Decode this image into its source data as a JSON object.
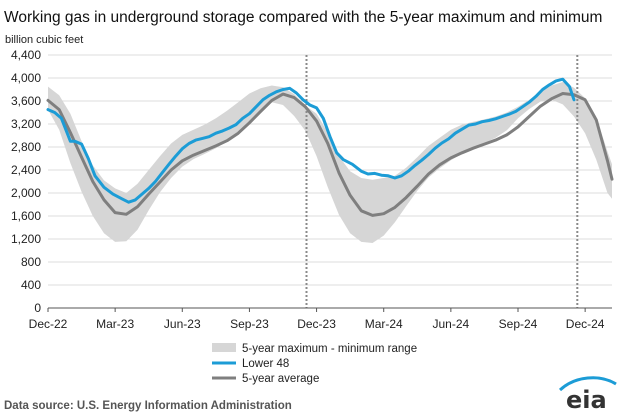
{
  "chart_data": {
    "type": "line",
    "title": "Working gas in underground storage compared with the 5-year maximum and minimum",
    "ylabel": "billion cubic feet",
    "xlabel": "",
    "ylim": [
      0,
      4400
    ],
    "yticks": [
      0,
      400,
      800,
      1200,
      1600,
      2000,
      2400,
      2800,
      3200,
      3600,
      4000,
      4400
    ],
    "ytick_labels": [
      "0",
      "400",
      "800",
      "1,200",
      "1,600",
      "2,000",
      "2,400",
      "2,800",
      "3,200",
      "3,600",
      "4,000",
      "4,400"
    ],
    "x_unit": "month index (0 = Dec-22)",
    "xlim": [
      0,
      25.2
    ],
    "xticks": [
      {
        "x": 0,
        "label": "Dec-22"
      },
      {
        "x": 3,
        "label": "Mar-23"
      },
      {
        "x": 6,
        "label": "Jun-23"
      },
      {
        "x": 9,
        "label": "Sep-23"
      },
      {
        "x": 12,
        "label": "Dec-23"
      },
      {
        "x": 15,
        "label": "Mar-24"
      },
      {
        "x": 18,
        "label": "Jun-24"
      },
      {
        "x": 21,
        "label": "Sep-24"
      },
      {
        "x": 24,
        "label": "Dec-24"
      }
    ],
    "grid": true,
    "vlines": [
      11.55,
      23.65
    ],
    "legend_position": "bottom-center",
    "range_band": {
      "name": "5-year maximum - minimum range",
      "color": "#d6d6d6",
      "x": [
        0,
        0.5,
        1,
        1.5,
        2,
        2.5,
        3,
        3.5,
        4,
        4.5,
        5,
        5.5,
        6,
        6.5,
        7,
        7.5,
        8,
        8.5,
        9,
        9.5,
        10,
        10.5,
        11,
        11.5,
        12,
        12.5,
        13,
        13.5,
        14,
        14.5,
        15,
        15.5,
        16,
        16.5,
        17,
        17.5,
        18,
        18.5,
        19,
        19.5,
        20,
        20.5,
        21,
        21.5,
        22,
        22.5,
        23,
        23.5,
        24,
        24.5,
        25,
        25.2
      ],
      "upper": [
        3850,
        3700,
        3380,
        2900,
        2480,
        2220,
        2080,
        2000,
        2160,
        2400,
        2640,
        2860,
        3010,
        3100,
        3190,
        3300,
        3430,
        3580,
        3730,
        3820,
        3870,
        3840,
        3720,
        3520,
        3380,
        3050,
        2640,
        2380,
        2260,
        2230,
        2260,
        2300,
        2440,
        2620,
        2820,
        2960,
        3100,
        3190,
        3240,
        3280,
        3330,
        3400,
        3500,
        3620,
        3760,
        3870,
        3930,
        3830,
        3650,
        3320,
        2720,
        2500
      ],
      "lower": [
        3450,
        3100,
        2520,
        2020,
        1600,
        1300,
        1150,
        1160,
        1360,
        1700,
        2010,
        2260,
        2460,
        2590,
        2680,
        2780,
        2900,
        3050,
        3250,
        3450,
        3580,
        3530,
        3340,
        3080,
        2640,
        2100,
        1620,
        1300,
        1150,
        1130,
        1260,
        1490,
        1770,
        2040,
        2270,
        2430,
        2570,
        2680,
        2780,
        2870,
        2960,
        3090,
        3300,
        3460,
        3590,
        3620,
        3540,
        3330,
        3040,
        2580,
        2000,
        1900
      ]
    },
    "series": [
      {
        "name": "Lower 48",
        "color": "#1c9cd6",
        "x": [
          0,
          0.3,
          0.6,
          1.0,
          1.2,
          1.5,
          1.8,
          2.1,
          2.5,
          2.9,
          3.3,
          3.6,
          3.9,
          4.2,
          4.5,
          4.8,
          5.1,
          5.4,
          5.7,
          6.0,
          6.3,
          6.6,
          6.9,
          7.2,
          7.5,
          7.8,
          8.1,
          8.4,
          8.7,
          9.0,
          9.3,
          9.6,
          9.9,
          10.2,
          10.5,
          10.8,
          11.1,
          11.4,
          11.7,
          12.0,
          12.3,
          12.6,
          12.9,
          13.2,
          13.6,
          14.0,
          14.3,
          14.6,
          14.9,
          15.2,
          15.5,
          15.8,
          16.1,
          16.4,
          16.7,
          17.0,
          17.3,
          17.6,
          17.9,
          18.2,
          18.5,
          18.8,
          19.1,
          19.4,
          19.7,
          20.0,
          20.3,
          20.6,
          20.9,
          21.2,
          21.5,
          21.8,
          22.1,
          22.4,
          22.7,
          23.0,
          23.3,
          23.5
        ],
        "y": [
          3450,
          3400,
          3300,
          2900,
          2900,
          2850,
          2600,
          2300,
          2100,
          1980,
          1900,
          1840,
          1880,
          1980,
          2080,
          2200,
          2350,
          2500,
          2640,
          2770,
          2860,
          2920,
          2950,
          2980,
          3040,
          3080,
          3130,
          3190,
          3300,
          3380,
          3500,
          3620,
          3700,
          3760,
          3800,
          3820,
          3740,
          3620,
          3530,
          3480,
          3300,
          2980,
          2700,
          2580,
          2500,
          2380,
          2330,
          2340,
          2310,
          2300,
          2260,
          2300,
          2380,
          2480,
          2570,
          2670,
          2780,
          2870,
          2940,
          3040,
          3110,
          3180,
          3200,
          3240,
          3260,
          3290,
          3330,
          3370,
          3420,
          3500,
          3580,
          3680,
          3800,
          3880,
          3950,
          3980,
          3850,
          3620
        ]
      },
      {
        "name": "5-year average",
        "color": "#7f7f7f",
        "x": [
          0,
          0.5,
          1,
          1.5,
          2,
          2.5,
          3,
          3.5,
          4,
          4.5,
          5,
          5.5,
          6,
          6.5,
          7,
          7.5,
          8,
          8.5,
          9,
          9.5,
          10,
          10.5,
          11,
          11.5,
          12,
          12.5,
          13,
          13.5,
          14,
          14.5,
          15,
          15.5,
          16,
          16.5,
          17,
          17.5,
          18,
          18.5,
          19,
          19.5,
          20,
          20.5,
          21,
          21.5,
          22,
          22.5,
          23,
          23.5,
          24,
          24.5,
          25,
          25.2
        ],
        "y": [
          3610,
          3450,
          3050,
          2620,
          2200,
          1880,
          1660,
          1630,
          1760,
          1980,
          2190,
          2400,
          2560,
          2660,
          2740,
          2820,
          2910,
          3040,
          3220,
          3420,
          3610,
          3720,
          3660,
          3500,
          3250,
          2860,
          2350,
          1960,
          1690,
          1610,
          1640,
          1750,
          1920,
          2120,
          2330,
          2490,
          2610,
          2700,
          2780,
          2850,
          2920,
          3010,
          3150,
          3330,
          3510,
          3640,
          3730,
          3710,
          3620,
          3270,
          2560,
          2240
        ]
      }
    ]
  },
  "footer": {
    "source": "Data source:  U.S. Energy Information Administration",
    "logo_text": "eia"
  }
}
